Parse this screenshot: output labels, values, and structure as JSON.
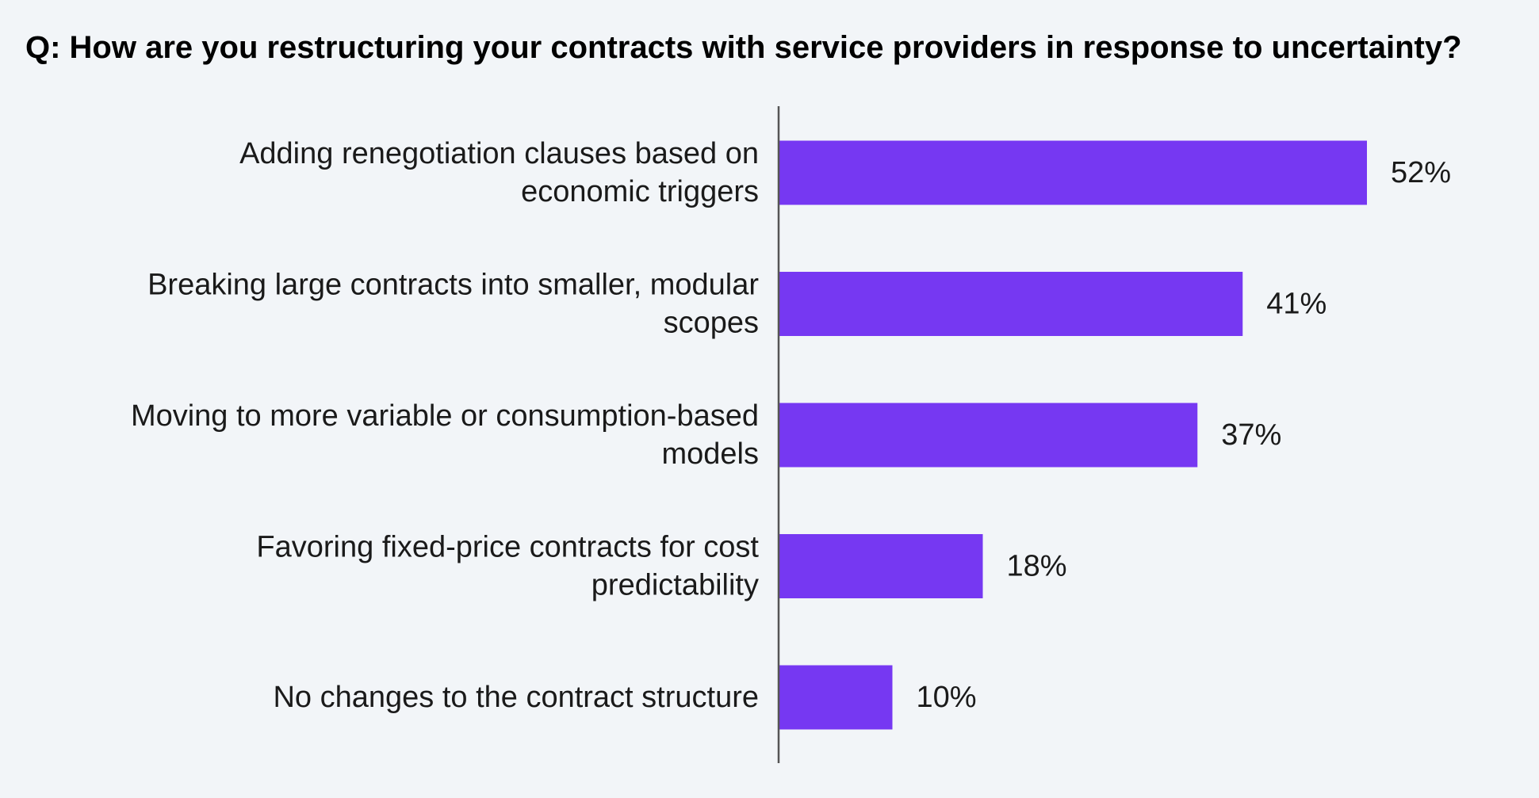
{
  "chart_data": {
    "type": "bar",
    "orientation": "horizontal",
    "title": "Q: How are you restructuring your contracts with service providers in response to uncertainty?",
    "categories": [
      [
        "Adding renegotiation clauses based on",
        "economic triggers"
      ],
      [
        "Breaking large contracts into smaller, modular",
        "scopes"
      ],
      [
        "Moving to more variable or consumption-based",
        "models"
      ],
      [
        "Favoring fixed-price contracts for cost",
        "predictability"
      ],
      [
        "No changes to the contract structure"
      ]
    ],
    "values": [
      52,
      41,
      37,
      18,
      10
    ],
    "value_labels": [
      "52%",
      "41%",
      "37%",
      "18%",
      "10%"
    ],
    "unit": "%",
    "xlim": [
      0,
      100
    ],
    "grid": false,
    "legend": "none",
    "colors": {
      "bar": "#7638f2",
      "axis": "#555555",
      "text": "#1a1a1a",
      "background": "#f2f5f8"
    }
  }
}
